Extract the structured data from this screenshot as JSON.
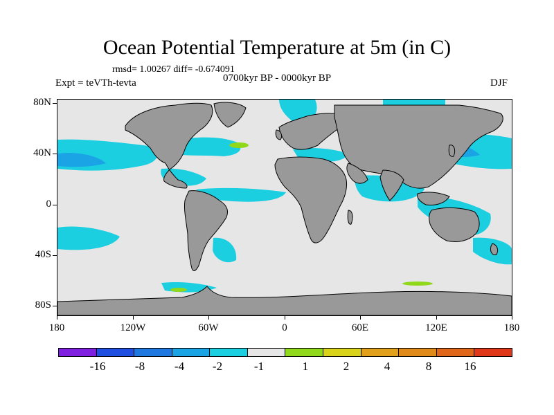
{
  "title": "Ocean Potential Temperature at 5m (in C)",
  "stats": "rmsd= 1.00267 diff= -0.674091",
  "experiment": "Expt = teVTh-tevta",
  "period": "0700kyr BP - 0000kyr BP",
  "season": "DJF",
  "y_axis_labels": [
    "80N",
    "40N",
    "0",
    "40S",
    "80S"
  ],
  "x_axis_labels": [
    "180",
    "120W",
    "60W",
    "0",
    "60E",
    "120E",
    "180"
  ],
  "colorbar": {
    "colors": [
      "#7f1fe0",
      "#1f4ee0",
      "#1f78e0",
      "#1aa4e6",
      "#1ccfe0",
      "#e6e6e6",
      "#8fd81a",
      "#d9d41a",
      "#e0a01a",
      "#e08a1a",
      "#e0661a",
      "#e0361a"
    ],
    "labels": [
      "-16",
      "-8",
      "-4",
      "-2",
      "-1",
      "1",
      "2",
      "4",
      "8",
      "16"
    ]
  },
  "map_colors": {
    "land": "#999999",
    "ocean_neutral": "#e6e6e6",
    "cool_light": "#1ccfe0",
    "cool_mid": "#1aa4e6",
    "cool_strong": "#1f78e0",
    "warm_light": "#8fd81a"
  }
}
